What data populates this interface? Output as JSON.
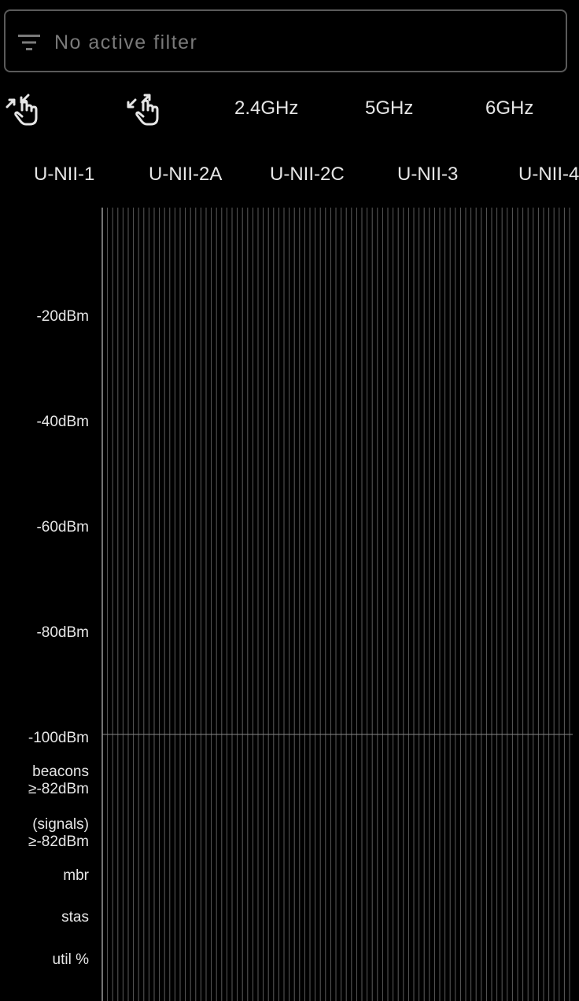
{
  "filter": {
    "placeholder": "No active filter",
    "icon": "filter-list-icon"
  },
  "toolbar": {
    "shrink_icon": "pinch-shrink-hand-icon",
    "expand_icon": "pinch-expand-hand-icon",
    "bands": [
      "2.4GHz",
      "5GHz",
      "6GHz"
    ]
  },
  "subbands": [
    "U-NII-1",
    "U-NII-2A",
    "U-NII-2C",
    "U-NII-3",
    "U-NII-4"
  ],
  "y_axis": {
    "levels": [
      "-20dBm",
      "-40dBm",
      "-60dBm",
      "-80dBm",
      "-100dBm"
    ],
    "extra_rows": [
      [
        "beacons",
        "≥-82dBm"
      ],
      [
        "(signals)",
        "≥-82dBm"
      ],
      [
        "mbr"
      ],
      [
        "stas"
      ],
      [
        "util %"
      ]
    ]
  },
  "colors": {
    "background": "#000000",
    "text": "#e6e6e6",
    "grid": "#5c5c5c",
    "muted": "#7a7a7a"
  }
}
